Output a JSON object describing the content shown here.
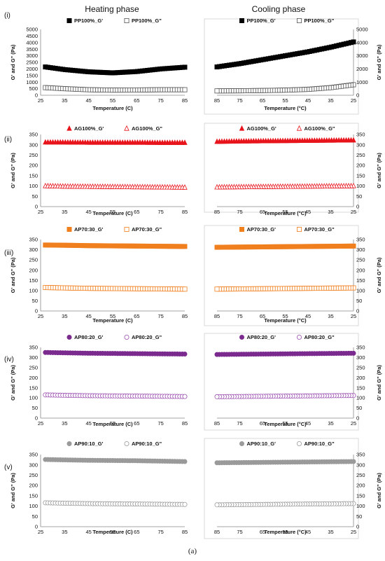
{
  "headings": {
    "heating": "Heating phase",
    "cooling": "Cooling phase"
  },
  "caption": "(a)",
  "chart_data": [
    {
      "type": "scatter",
      "row": "(i)",
      "phase": "heating",
      "xlabel": "Temperature (C)",
      "ylabel": "G' and G\" (Pa)",
      "xlim": [
        25,
        85
      ],
      "xticks": [
        25,
        35,
        45,
        55,
        65,
        75,
        85
      ],
      "ylim": [
        0,
        5000
      ],
      "yticks": [
        0,
        500,
        1000,
        1500,
        2000,
        2500,
        3000,
        3500,
        4000,
        4500,
        5000
      ],
      "legend": "top",
      "grid": false,
      "series": [
        {
          "name": "PP100%_G'",
          "marker": "filled-square",
          "color": "#000000",
          "x": [
            27,
            35,
            45,
            55,
            65,
            75,
            85
          ],
          "y": [
            2150,
            1950,
            1780,
            1700,
            1800,
            2000,
            2130
          ]
        },
        {
          "name": "PP100%_G\"",
          "marker": "open-square",
          "color": "#555555",
          "x": [
            27,
            35,
            45,
            55,
            65,
            75,
            85
          ],
          "y": [
            580,
            500,
            420,
            390,
            400,
            420,
            420
          ]
        }
      ]
    },
    {
      "type": "scatter",
      "row": "(i)",
      "phase": "cooling",
      "xlabel": "Temperature (°C)",
      "ylabel": "G' and G\" (Pa)",
      "xlim": [
        85,
        25
      ],
      "xticks": [
        85,
        75,
        65,
        55,
        45,
        35,
        25
      ],
      "ylim": [
        0,
        5000
      ],
      "yticks": [
        0,
        1000,
        2000,
        3000,
        4000,
        5000
      ],
      "legend": "top",
      "grid": false,
      "series": [
        {
          "name": "PP100%_G'",
          "marker": "filled-square",
          "color": "#000000",
          "x": [
            85,
            75,
            65,
            55,
            45,
            35,
            25
          ],
          "y": [
            2150,
            2400,
            2700,
            3000,
            3300,
            3650,
            4050
          ]
        },
        {
          "name": "PP100%_G\"",
          "marker": "open-square",
          "color": "#555555",
          "x": [
            85,
            75,
            65,
            55,
            45,
            35,
            25
          ],
          "y": [
            330,
            340,
            360,
            390,
            450,
            580,
            800
          ]
        }
      ]
    },
    {
      "type": "scatter",
      "row": "(ii)",
      "phase": "heating",
      "xlabel": "Temperature (C)",
      "ylabel": "G' and G\" (Pa)",
      "xlim": [
        25,
        85
      ],
      "xticks": [
        25,
        35,
        45,
        55,
        65,
        75,
        85
      ],
      "ylim": [
        0,
        350
      ],
      "yticks": [
        0,
        50,
        100,
        150,
        200,
        250,
        300,
        350
      ],
      "legend": "top",
      "grid": false,
      "series": [
        {
          "name": "AG100%_G'",
          "marker": "filled-triangle",
          "color": "#e8141c",
          "x": [
            27,
            35,
            45,
            55,
            65,
            75,
            85
          ],
          "y": [
            312,
            312,
            311,
            311,
            311,
            310,
            310
          ]
        },
        {
          "name": "AG100%_G\"",
          "marker": "open-triangle",
          "color": "#e8141c",
          "x": [
            27,
            35,
            45,
            55,
            65,
            75,
            85
          ],
          "y": [
            100,
            98,
            97,
            96,
            95,
            94,
            93
          ]
        }
      ]
    },
    {
      "type": "scatter",
      "row": "(ii)",
      "phase": "cooling",
      "xlabel": "Temperature (°C)",
      "ylabel": "G' and G\" (Pa)",
      "xlim": [
        85,
        25
      ],
      "xticks": [
        85,
        75,
        65,
        55,
        45,
        35,
        25
      ],
      "ylim": [
        0,
        350
      ],
      "yticks": [
        0,
        50,
        100,
        150,
        200,
        250,
        300,
        350
      ],
      "legend": "top",
      "grid": false,
      "series": [
        {
          "name": "AG100%_G'",
          "marker": "filled-triangle",
          "color": "#e8141c",
          "x": [
            85,
            75,
            65,
            55,
            45,
            35,
            25
          ],
          "y": [
            315,
            317,
            318,
            319,
            320,
            321,
            322
          ]
        },
        {
          "name": "AG100%_G\"",
          "marker": "open-triangle",
          "color": "#e8141c",
          "x": [
            85,
            75,
            65,
            55,
            45,
            35,
            25
          ],
          "y": [
            94,
            95,
            96,
            97,
            98,
            99,
            100
          ]
        }
      ]
    },
    {
      "type": "scatter",
      "row": "(iii)",
      "phase": "heating",
      "xlabel": "Temperature (C)",
      "ylabel": "G' and G\" (Pa)",
      "xlim": [
        25,
        85
      ],
      "xticks": [
        25,
        35,
        45,
        55,
        65,
        75,
        85
      ],
      "ylim": [
        0,
        350
      ],
      "yticks": [
        0,
        50,
        100,
        150,
        200,
        250,
        300,
        350
      ],
      "legend": "top",
      "grid": false,
      "series": [
        {
          "name": "AP70:30_G'",
          "marker": "filled-square",
          "color": "#f07f1e",
          "x": [
            27,
            35,
            45,
            55,
            65,
            75,
            85
          ],
          "y": [
            323,
            322,
            320,
            319,
            318,
            317,
            316
          ]
        },
        {
          "name": "AP70:30_G\"",
          "marker": "open-square",
          "color": "#f07f1e",
          "x": [
            27,
            35,
            45,
            55,
            65,
            75,
            85
          ],
          "y": [
            115,
            113,
            111,
            110,
            109,
            108,
            107
          ]
        }
      ]
    },
    {
      "type": "scatter",
      "row": "(iii)",
      "phase": "cooling",
      "xlabel": "Temperature (°C)",
      "ylabel": "G' and G\" (Pa)",
      "xlim": [
        85,
        25
      ],
      "xticks": [
        85,
        75,
        65,
        55,
        45,
        35,
        25
      ],
      "ylim": [
        0,
        350
      ],
      "yticks": [
        0,
        50,
        100,
        150,
        200,
        250,
        300,
        350
      ],
      "legend": "top",
      "grid": false,
      "series": [
        {
          "name": "AP70:30_G'",
          "marker": "filled-square",
          "color": "#f07f1e",
          "x": [
            85,
            75,
            65,
            55,
            45,
            35,
            25
          ],
          "y": [
            312,
            313,
            314,
            315,
            316,
            317,
            318
          ]
        },
        {
          "name": "AP70:30_G\"",
          "marker": "open-square",
          "color": "#f07f1e",
          "x": [
            85,
            75,
            65,
            55,
            45,
            35,
            25
          ],
          "y": [
            107,
            108,
            109,
            110,
            111,
            112,
            113
          ]
        }
      ]
    },
    {
      "type": "scatter",
      "row": "(iv)",
      "phase": "heating",
      "xlabel": "Temperature (C)",
      "ylabel": "G' and G\" (Pa)",
      "xlim": [
        25,
        85
      ],
      "xticks": [
        25,
        35,
        45,
        55,
        65,
        75,
        85
      ],
      "ylim": [
        0,
        350
      ],
      "yticks": [
        0,
        50,
        100,
        150,
        200,
        250,
        300,
        350
      ],
      "legend": "top",
      "grid": false,
      "series": [
        {
          "name": "AP80:20_G'",
          "marker": "filled-circle",
          "color": "#7b2a8e",
          "x": [
            27,
            35,
            45,
            55,
            65,
            75,
            85
          ],
          "y": [
            325,
            323,
            321,
            320,
            319,
            318,
            317
          ]
        },
        {
          "name": "AP80:20_G\"",
          "marker": "open-circle",
          "color": "#9b4fb0",
          "x": [
            27,
            35,
            45,
            55,
            65,
            75,
            85
          ],
          "y": [
            115,
            113,
            111,
            110,
            109,
            108,
            107
          ]
        }
      ]
    },
    {
      "type": "scatter",
      "row": "(iv)",
      "phase": "cooling",
      "xlabel": "Temperature (°C)",
      "ylabel": "G' and G\" (Pa)",
      "xlim": [
        85,
        25
      ],
      "xticks": [
        85,
        75,
        65,
        55,
        45,
        35,
        25
      ],
      "ylim": [
        0,
        350
      ],
      "yticks": [
        0,
        50,
        100,
        150,
        200,
        250,
        300,
        350
      ],
      "legend": "top",
      "grid": false,
      "series": [
        {
          "name": "AP80:20_G'",
          "marker": "filled-circle",
          "color": "#7b2a8e",
          "x": [
            85,
            75,
            65,
            55,
            45,
            35,
            25
          ],
          "y": [
            315,
            316,
            317,
            318,
            319,
            320,
            321
          ]
        },
        {
          "name": "AP80:20_G\"",
          "marker": "open-circle",
          "color": "#9b4fb0",
          "x": [
            85,
            75,
            65,
            55,
            45,
            35,
            25
          ],
          "y": [
            106,
            107,
            108,
            109,
            110,
            111,
            112
          ]
        }
      ]
    },
    {
      "type": "scatter",
      "row": "(v)",
      "phase": "heating",
      "xlabel": "Temperature (C)",
      "ylabel": "G' and G\" (Pa)",
      "xlim": [
        25,
        85
      ],
      "xticks": [
        25,
        35,
        45,
        55,
        65,
        75,
        85
      ],
      "ylim": [
        0,
        350
      ],
      "yticks": [
        0,
        50,
        100,
        150,
        200,
        250,
        300,
        350
      ],
      "legend": "top",
      "grid": false,
      "series": [
        {
          "name": "AP90:10_G'",
          "marker": "filled-circle",
          "color": "#9a9a9a",
          "x": [
            27,
            35,
            45,
            55,
            65,
            75,
            85
          ],
          "y": [
            326,
            324,
            322,
            321,
            320,
            318,
            316
          ]
        },
        {
          "name": "AP90:10_G\"",
          "marker": "open-circle",
          "color": "#9a9a9a",
          "x": [
            27,
            35,
            45,
            55,
            65,
            75,
            85
          ],
          "y": [
            116,
            114,
            112,
            111,
            110,
            109,
            108
          ]
        }
      ]
    },
    {
      "type": "scatter",
      "row": "(v)",
      "phase": "cooling",
      "xlabel": "Temperature (°C)",
      "ylabel": "G' and G\" (Pa)",
      "xlim": [
        85,
        25
      ],
      "xticks": [
        85,
        75,
        65,
        55,
        45,
        35,
        25
      ],
      "ylim": [
        0,
        350
      ],
      "yticks": [
        0,
        50,
        100,
        150,
        200,
        250,
        300,
        350
      ],
      "legend": "top",
      "grid": false,
      "series": [
        {
          "name": "AP90:10_G'",
          "marker": "filled-circle",
          "color": "#9a9a9a",
          "x": [
            85,
            75,
            65,
            55,
            45,
            35,
            25
          ],
          "y": [
            310,
            311,
            312,
            313,
            314,
            315,
            316
          ]
        },
        {
          "name": "AP90:10_G\"",
          "marker": "open-circle",
          "color": "#9a9a9a",
          "x": [
            85,
            75,
            65,
            55,
            45,
            35,
            25
          ],
          "y": [
            106,
            107,
            108,
            109,
            110,
            111,
            112
          ]
        }
      ]
    }
  ]
}
